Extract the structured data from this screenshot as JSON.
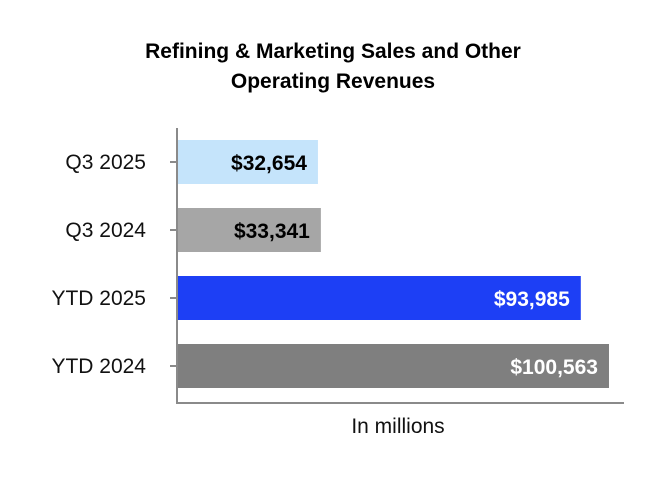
{
  "chart_data": {
    "type": "bar",
    "orientation": "horizontal",
    "title": "Refining & Marketing Sales and Other Operating Revenues",
    "title_lines": [
      "Refining & Marketing Sales and Other",
      "Operating Revenues"
    ],
    "xlabel": "In millions",
    "ylabel": "",
    "categories": [
      "Q3 2025",
      "Q3 2024",
      "YTD 2025",
      "YTD 2024"
    ],
    "values": [
      32654,
      33341,
      93985,
      100563
    ],
    "value_labels": [
      "$32,654",
      "$33,341",
      "$93,985",
      "$100,563"
    ],
    "colors": [
      "#c5e4fb",
      "#a6a6a6",
      "#1d3ff5",
      "#7f7f7f"
    ],
    "label_colors": [
      "#000000",
      "#000000",
      "#ffffff",
      "#ffffff"
    ],
    "xlim": [
      0,
      105000
    ],
    "grid": false,
    "legend": "none"
  }
}
